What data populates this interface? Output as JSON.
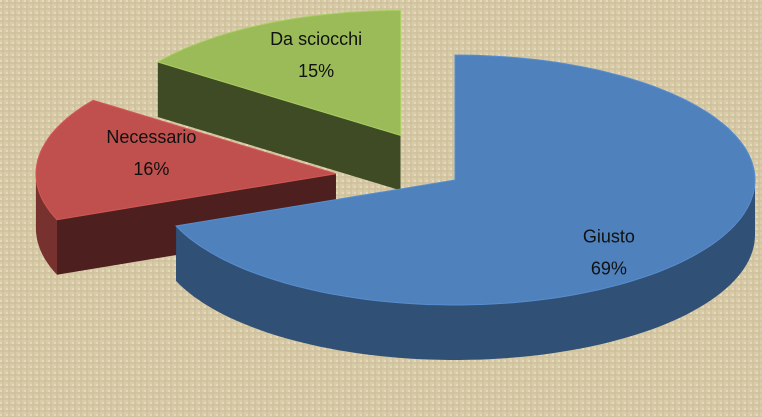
{
  "chart_data": {
    "type": "pie",
    "categories": [
      "Giusto",
      "Necessario",
      "Da sciocchi"
    ],
    "values": [
      69,
      16,
      15
    ],
    "value_labels": [
      "69%",
      "16%",
      "15%"
    ],
    "colors": [
      "#4f81bd",
      "#c0504d",
      "#9bbb59"
    ]
  }
}
